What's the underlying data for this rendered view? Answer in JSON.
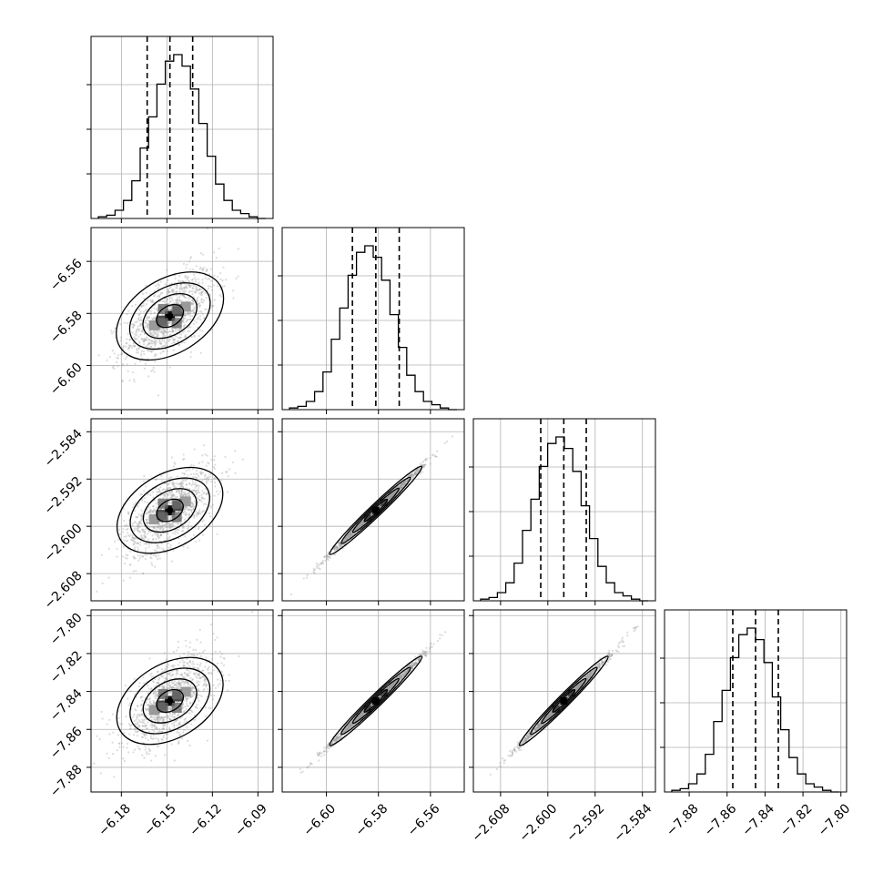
{
  "chart_data": {
    "type": "corner",
    "title": "",
    "n_params": 4,
    "params": [
      {
        "index": 0,
        "xlabel": "",
        "ylabel": "",
        "range": [
          -6.2,
          -6.08
        ],
        "ticks": [
          -6.18,
          -6.15,
          -6.12,
          -6.09
        ],
        "tick_labels": [
          "−6.18",
          "−6.15",
          "−6.12",
          "−6.09"
        ],
        "quantiles": [
          -6.163,
          -6.148,
          -6.133
        ]
      },
      {
        "index": 1,
        "xlabel": "",
        "ylabel": "",
        "range": [
          -6.617,
          -6.547
        ],
        "ticks": [
          -6.6,
          -6.58,
          -6.56
        ],
        "tick_labels": [
          "−6.60",
          "−6.58",
          "−6.56"
        ],
        "quantiles": [
          -6.59,
          -6.581,
          -6.572
        ]
      },
      {
        "index": 2,
        "xlabel": "",
        "ylabel": "",
        "range": [
          -2.6126,
          -2.5818
        ],
        "ticks": [
          -2.608,
          -2.6,
          -2.592,
          -2.584
        ],
        "tick_labels": [
          "−2.608",
          "−2.600",
          "−2.592",
          "−2.584"
        ],
        "quantiles": [
          -2.6012,
          -2.5973,
          -2.5935
        ]
      },
      {
        "index": 3,
        "xlabel": "",
        "ylabel": "",
        "range": [
          -7.893,
          -7.797
        ],
        "ticks": [
          -7.88,
          -7.86,
          -7.84,
          -7.82,
          -7.8
        ],
        "tick_labels": [
          "−7.88",
          "−7.86",
          "−7.84",
          "−7.82",
          "−7.80"
        ],
        "quantiles": [
          -7.857,
          -7.845,
          -7.833
        ]
      }
    ],
    "histograms": [
      {
        "param": 0,
        "counts": [
          1,
          2,
          5,
          11,
          23,
          43,
          62,
          82,
          96,
          100,
          93,
          79,
          58,
          38,
          21,
          11,
          5,
          3,
          1,
          0
        ]
      },
      {
        "param": 1,
        "counts": [
          1,
          2,
          5,
          11,
          23,
          43,
          62,
          82,
          96,
          100,
          93,
          79,
          58,
          38,
          21,
          11,
          5,
          3,
          1,
          0
        ]
      },
      {
        "param": 2,
        "counts": [
          1,
          2,
          5,
          11,
          23,
          43,
          62,
          82,
          96,
          100,
          93,
          79,
          58,
          38,
          21,
          11,
          5,
          3,
          1,
          0
        ]
      },
      {
        "param": 3,
        "counts": [
          1,
          2,
          5,
          11,
          23,
          43,
          62,
          82,
          96,
          100,
          93,
          79,
          58,
          38,
          21,
          11,
          5,
          3,
          1,
          0
        ]
      }
    ],
    "joint": [
      {
        "x_param": 0,
        "y_param": 1,
        "mean": [
          -6.148,
          -6.581
        ],
        "sd": [
          0.015,
          0.009
        ],
        "rho": 0.6
      },
      {
        "x_param": 0,
        "y_param": 2,
        "mean": [
          -6.148,
          -2.5973
        ],
        "sd": [
          0.015,
          0.0038
        ],
        "rho": 0.6
      },
      {
        "x_param": 0,
        "y_param": 3,
        "mean": [
          -6.148,
          -7.845
        ],
        "sd": [
          0.015,
          0.012
        ],
        "rho": 0.6
      },
      {
        "x_param": 1,
        "y_param": 2,
        "mean": [
          -6.581,
          -2.5973
        ],
        "sd": [
          0.009,
          0.0038
        ],
        "rho": 0.995
      },
      {
        "x_param": 1,
        "y_param": 3,
        "mean": [
          -6.581,
          -7.845
        ],
        "sd": [
          0.009,
          0.012
        ],
        "rho": 0.995
      },
      {
        "x_param": 2,
        "y_param": 3,
        "mean": [
          -2.5973,
          -7.845
        ],
        "sd": [
          0.0038,
          0.012
        ],
        "rho": 0.995
      }
    ],
    "contour_levels_sigma": [
      0.5,
      1.0,
      1.5,
      2.0
    ],
    "quantiles": [
      0.16,
      0.5,
      0.84
    ],
    "grid": true,
    "colors": {
      "frame": "#000000",
      "grid": "#b0b0b0",
      "points": "#9a9a9a",
      "contour": "#000000"
    }
  }
}
